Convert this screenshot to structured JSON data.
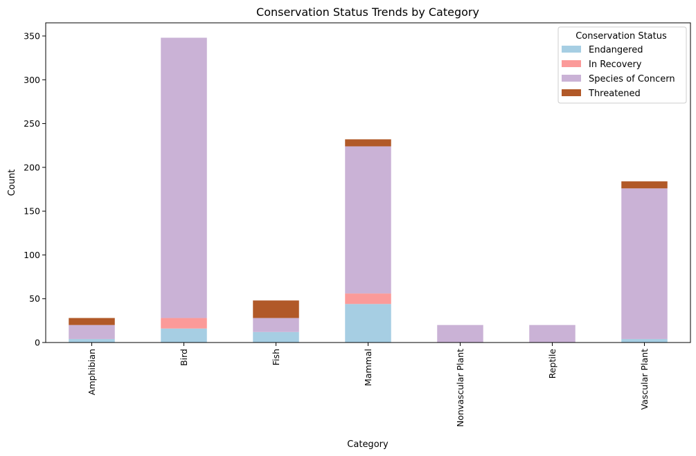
{
  "chart_data": {
    "type": "bar",
    "stacked": true,
    "title": "Conservation Status Trends by Category",
    "xlabel": "Category",
    "ylabel": "Count",
    "ylim": [
      0,
      365
    ],
    "yticks": [
      0,
      50,
      100,
      150,
      200,
      250,
      300,
      350
    ],
    "grid": false,
    "categories": [
      "Amphibian",
      "Bird",
      "Fish",
      "Mammal",
      "Nonvascular Plant",
      "Reptile",
      "Vascular Plant"
    ],
    "series": [
      {
        "name": "Endangered",
        "color": "#a6cee3",
        "values": [
          4,
          16,
          12,
          44,
          0,
          0,
          4
        ]
      },
      {
        "name": "In Recovery",
        "color": "#fb9a99",
        "values": [
          0,
          12,
          0,
          12,
          0,
          0,
          0
        ]
      },
      {
        "name": "Species of Concern",
        "color": "#cab2d6",
        "values": [
          16,
          320,
          16,
          168,
          20,
          20,
          172
        ]
      },
      {
        "name": "Threatened",
        "color": "#b15928",
        "values": [
          8,
          0,
          20,
          8,
          0,
          0,
          8
        ]
      }
    ],
    "legend": {
      "title": "Conservation Status",
      "placement": "top-right"
    }
  }
}
